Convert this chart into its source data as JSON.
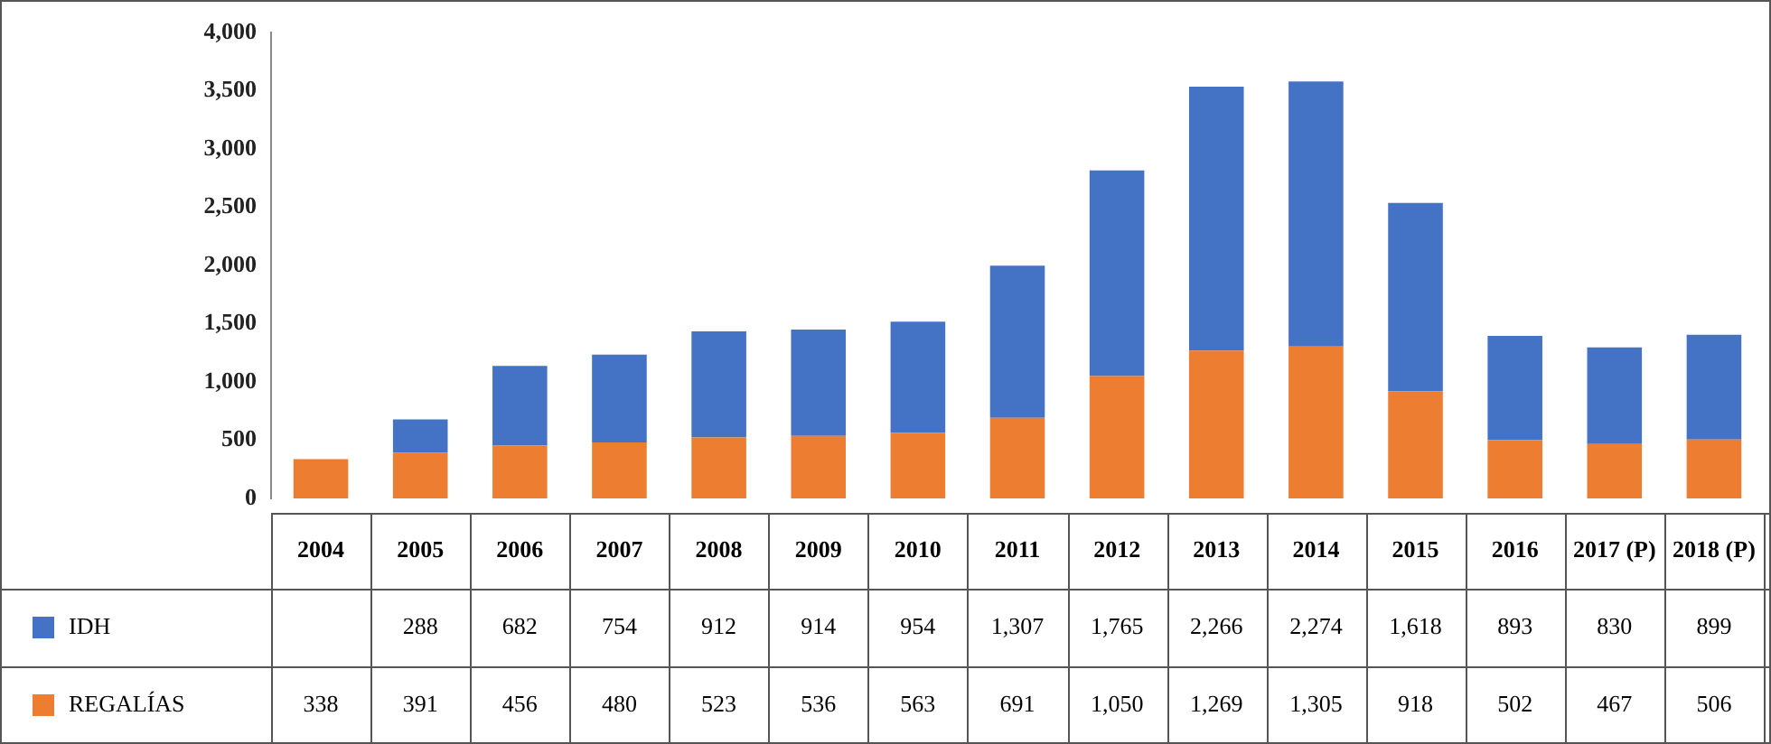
{
  "chart_data": {
    "type": "bar",
    "stacked": true,
    "categories": [
      "2004",
      "2005",
      "2006",
      "2007",
      "2008",
      "2009",
      "2010",
      "2011",
      "2012",
      "2013",
      "2014",
      "2015",
      "2016",
      "2017 (P)",
      "2018 (P)"
    ],
    "series": [
      {
        "name": "REGALÍAS",
        "color": "#ed7d31",
        "values": [
          338,
          391,
          456,
          480,
          523,
          536,
          563,
          691,
          1050,
          1269,
          1305,
          918,
          502,
          467,
          506
        ],
        "value_labels": [
          "338",
          "391",
          "456",
          "480",
          "523",
          "536",
          "563",
          "691",
          "1,050",
          "1,269",
          "1,305",
          "918",
          "502",
          "467",
          "506"
        ]
      },
      {
        "name": "IDH",
        "color": "#4472c4",
        "values": [
          null,
          288,
          682,
          754,
          912,
          914,
          954,
          1307,
          1765,
          2266,
          2274,
          1618,
          893,
          830,
          899
        ],
        "value_labels": [
          null,
          "288",
          "682",
          "754",
          "912",
          "914",
          "954",
          "1,307",
          "1,765",
          "2,266",
          "2,274",
          "1,618",
          "893",
          "830",
          "899"
        ]
      }
    ],
    "ylim": [
      0,
      4000
    ],
    "yticks": [
      0,
      500,
      {
        "value": 1000,
        "label": "1,000"
      },
      {
        "value": 1500,
        "label": "1,500"
      },
      {
        "value": 2000,
        "label": "2,000"
      },
      {
        "value": 2500,
        "label": "2,500"
      },
      {
        "value": 3000,
        "label": "3,000"
      },
      {
        "value": 3500,
        "label": "3,500"
      },
      {
        "value": 4000,
        "label": "4,000"
      }
    ],
    "grid": false,
    "legend": "bottom left"
  }
}
